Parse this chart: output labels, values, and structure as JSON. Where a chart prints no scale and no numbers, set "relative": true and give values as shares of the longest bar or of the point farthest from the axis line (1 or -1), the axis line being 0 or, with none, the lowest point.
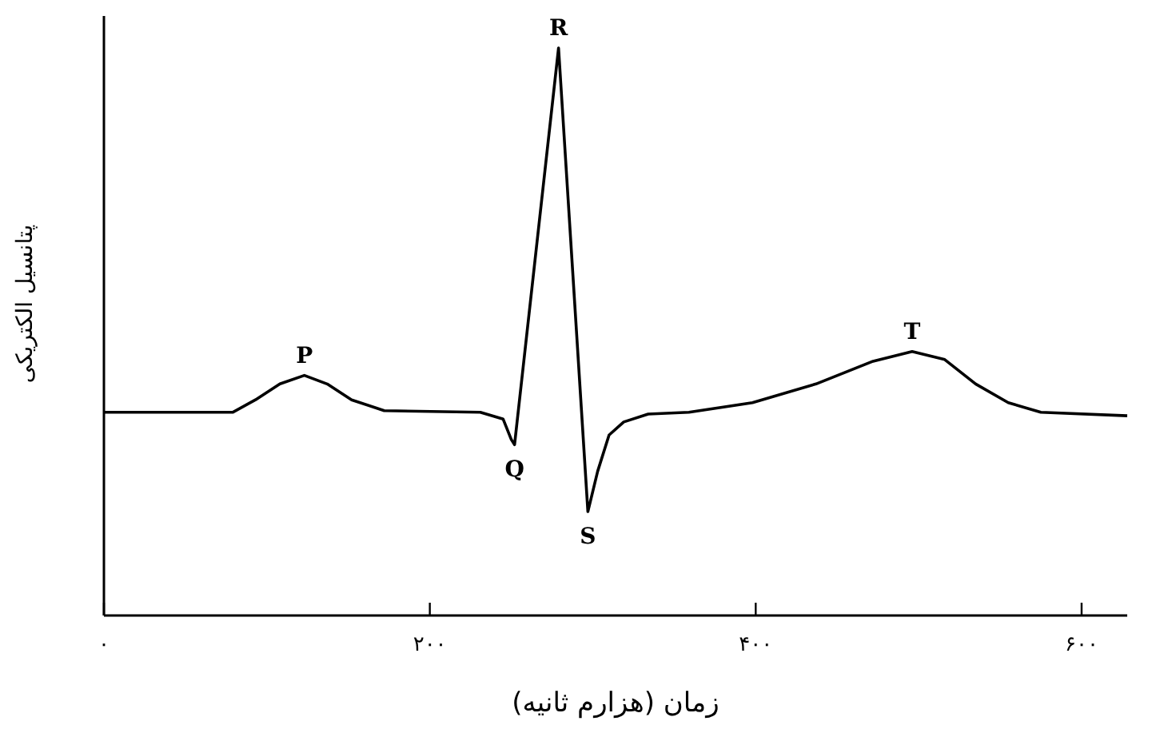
{
  "chart_data": {
    "type": "line",
    "relative": true,
    "xlabel": "زمان (هزارم ثانیه)",
    "ylabel": "پتانسیل الکتریکی",
    "color": "#000000",
    "xlim": [
      0,
      628
    ],
    "xticks": [
      {
        "value": 0,
        "label": "۰"
      },
      {
        "value": 200,
        "label": "۲۰۰"
      },
      {
        "value": 400,
        "label": "۴۰۰"
      },
      {
        "value": 600,
        "label": "۶۰۰"
      }
    ],
    "x": [
      0,
      79,
      93,
      108,
      123,
      137,
      152,
      172,
      231,
      245,
      250,
      252,
      279,
      297,
      303,
      310,
      319,
      334,
      359,
      398,
      437,
      472,
      496,
      516,
      535,
      555,
      575,
      628
    ],
    "values": [
      0.358,
      0.358,
      0.38,
      0.408,
      0.423,
      0.408,
      0.38,
      0.361,
      0.358,
      0.346,
      0.31,
      0.301,
      1,
      0.183,
      0.254,
      0.318,
      0.341,
      0.355,
      0.358,
      0.375,
      0.408,
      0.448,
      0.465,
      0.451,
      0.408,
      0.375,
      0.358,
      0.352
    ],
    "annotations": [
      {
        "text": "P",
        "x": 123,
        "y": 0.423
      },
      {
        "text": "Q",
        "x": 252,
        "y": 0.301
      },
      {
        "text": "R",
        "x": 279,
        "y": 1
      },
      {
        "text": "S",
        "x": 297,
        "y": 0.183
      },
      {
        "text": "T",
        "x": 496,
        "y": 0.465
      }
    ],
    "grid": false,
    "marker": "none",
    "line_style": "solid"
  }
}
